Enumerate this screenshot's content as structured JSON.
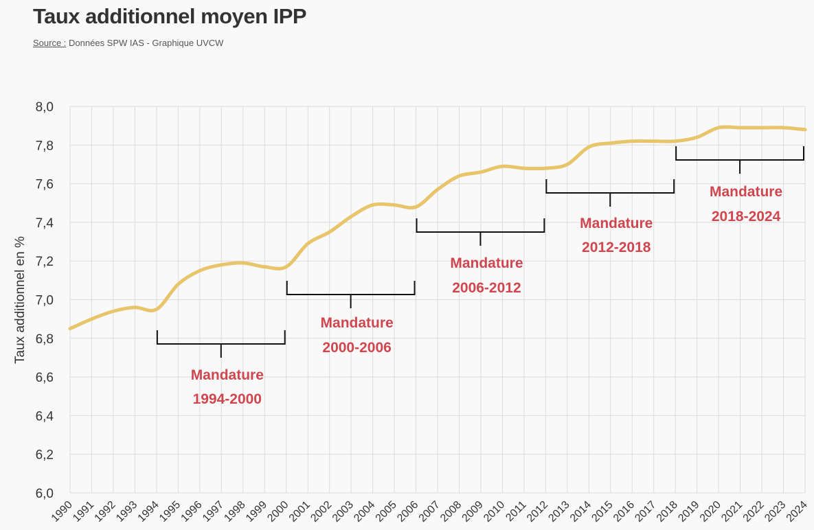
{
  "header": {
    "title": "Taux additionnel moyen IPP",
    "source_label": "Source :",
    "source_text": " Données SPW IAS - Graphique UVCW"
  },
  "chart_data": {
    "type": "line",
    "title": "Taux additionnel moyen IPP",
    "ylabel": "Taux additionnel en %",
    "xlabel": "",
    "ylim": [
      6.0,
      8.0
    ],
    "yticks": [
      "6,0",
      "6,2",
      "6,4",
      "6,6",
      "6,8",
      "7,0",
      "7,2",
      "7,4",
      "7,6",
      "7,8",
      "8,0"
    ],
    "grid": true,
    "x": [
      1990,
      1991,
      1992,
      1993,
      1994,
      1995,
      1996,
      1997,
      1998,
      1999,
      2000,
      2001,
      2002,
      2003,
      2004,
      2005,
      2006,
      2007,
      2008,
      2009,
      2010,
      2011,
      2012,
      2013,
      2014,
      2015,
      2016,
      2017,
      2018,
      2019,
      2020,
      2021,
      2022,
      2023,
      2024
    ],
    "series": [
      {
        "color": "#e8c46a",
        "values": [
          6.85,
          6.9,
          6.94,
          6.96,
          6.95,
          7.08,
          7.15,
          7.18,
          7.19,
          7.17,
          7.17,
          7.29,
          7.35,
          7.43,
          7.49,
          7.49,
          7.48,
          7.57,
          7.64,
          7.66,
          7.69,
          7.68,
          7.68,
          7.7,
          7.79,
          7.81,
          7.82,
          7.82,
          7.82,
          7.84,
          7.89,
          7.89,
          7.89,
          7.89,
          7.88
        ]
      }
    ],
    "annotations": [
      {
        "line1": "Mandature",
        "line2": "1994-2000",
        "start": 1994,
        "end": 2000
      },
      {
        "line1": "Mandature",
        "line2": "2000-2006",
        "start": 2000,
        "end": 2006
      },
      {
        "line1": "Mandature",
        "line2": "2006-2012",
        "start": 2006,
        "end": 2012
      },
      {
        "line1": "Mandature",
        "line2": "2012-2018",
        "start": 2012,
        "end": 2018
      },
      {
        "line1": "Mandature",
        "line2": "2018-2024",
        "start": 2018,
        "end": 2024
      }
    ],
    "annotation_color": "#d0464f"
  }
}
